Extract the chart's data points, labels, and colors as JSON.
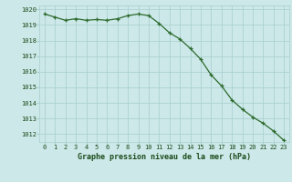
{
  "x": [
    0,
    1,
    2,
    3,
    4,
    5,
    6,
    7,
    8,
    9,
    10,
    11,
    12,
    13,
    14,
    15,
    16,
    17,
    18,
    19,
    20,
    21,
    22,
    23
  ],
  "y": [
    1019.7,
    1019.5,
    1019.3,
    1019.4,
    1019.3,
    1019.35,
    1019.3,
    1019.4,
    1019.6,
    1019.7,
    1019.6,
    1019.1,
    1018.5,
    1018.1,
    1017.5,
    1016.8,
    1015.8,
    1015.1,
    1014.2,
    1013.6,
    1013.1,
    1012.7,
    1012.2,
    1011.6
  ],
  "line_color": "#2d6a2d",
  "marker_color": "#2d6a2d",
  "bg_color": "#cce8e8",
  "grid_color": "#a8cece",
  "text_color": "#1a4a1a",
  "xlabel": "Graphe pression niveau de la mer (hPa)",
  "ylim": [
    1011.5,
    1020.25
  ],
  "xlim": [
    -0.5,
    23.5
  ],
  "yticks": [
    1012,
    1013,
    1014,
    1015,
    1016,
    1017,
    1018,
    1019,
    1020
  ],
  "xticks": [
    0,
    1,
    2,
    3,
    4,
    5,
    6,
    7,
    8,
    9,
    10,
    11,
    12,
    13,
    14,
    15,
    16,
    17,
    18,
    19,
    20,
    21,
    22,
    23
  ],
  "tick_fontsize": 5.0,
  "label_fontsize": 6.0
}
